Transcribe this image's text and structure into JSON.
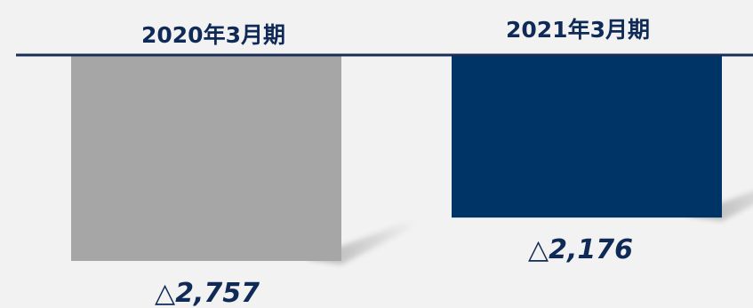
{
  "chart_data": {
    "type": "bar",
    "categories": [
      "2020年3月期",
      "2021年3月期"
    ],
    "values": [
      -2757,
      -2176
    ],
    "value_labels": [
      "△2,757",
      "△2,176"
    ],
    "ylim": [
      -2757,
      0
    ],
    "colors": [
      "#a6a6a6",
      "#003366"
    ],
    "axis_color": "#1a2e55",
    "background": "#f2f2f2",
    "grid": false,
    "legend": "none"
  }
}
